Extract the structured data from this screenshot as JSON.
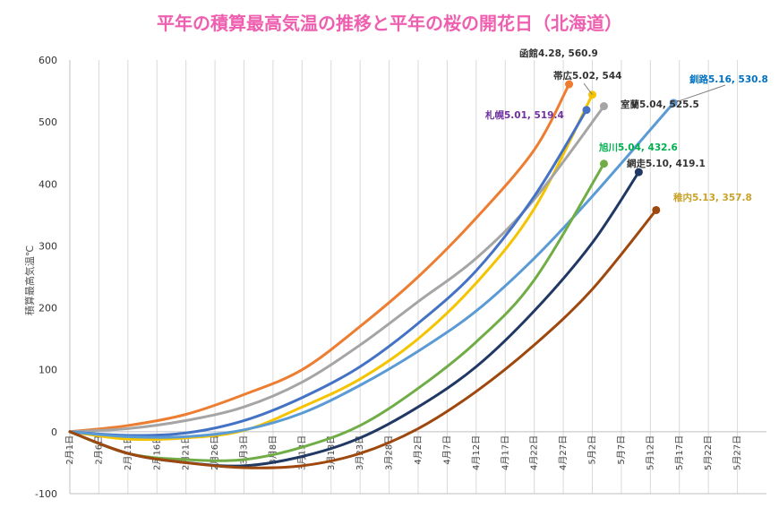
{
  "chart_data": {
    "type": "line",
    "title": "平年の積算最高気温の推移と平年の桜の開花日（北海道）",
    "ylabel": "積算最高気温℃",
    "xlabel": "",
    "ylim": [
      -100,
      600
    ],
    "yticks": [
      -100,
      0,
      100,
      200,
      300,
      400,
      500,
      600
    ],
    "grid": "vertical",
    "legend": "none",
    "x_tick_labels": [
      "2月1日",
      "2月6日",
      "2月11日",
      "2月16日",
      "2月21日",
      "2月26日",
      "3月3日",
      "3月8日",
      "3月13日",
      "3月18日",
      "3月23日",
      "3月28日",
      "4月2日",
      "4月7日",
      "4月12日",
      "4月17日",
      "4月22日",
      "4月27日",
      "5月2日",
      "5月7日",
      "5月12日",
      "5月17日",
      "5月22日",
      "5月27日"
    ],
    "series": [
      {
        "label": "函館4.28, 560.9",
        "color": "#ed7d31",
        "label_color": "#333333",
        "points": [
          [
            "2/1",
            0
          ],
          [
            "2/11",
            10
          ],
          [
            "2/21",
            28
          ],
          [
            "3/3",
            60
          ],
          [
            "3/13",
            100
          ],
          [
            "3/23",
            170
          ],
          [
            "4/2",
            250
          ],
          [
            "4/12",
            345
          ],
          [
            "4/22",
            455
          ],
          [
            "4/28",
            560.9
          ]
        ]
      },
      {
        "label": "帯広5.02, 544",
        "color": "#f5c400",
        "label_color": "#333333",
        "points": [
          [
            "2/1",
            0
          ],
          [
            "2/11",
            -12
          ],
          [
            "2/21",
            -10
          ],
          [
            "3/3",
            2
          ],
          [
            "3/13",
            40
          ],
          [
            "3/23",
            85
          ],
          [
            "4/2",
            150
          ],
          [
            "4/12",
            240
          ],
          [
            "4/22",
            360
          ],
          [
            "5/2",
            544
          ]
        ]
      },
      {
        "label": "室蘭5.04, 525.5",
        "color": "#a5a5a5",
        "label_color": "#333333",
        "points": [
          [
            "2/1",
            0
          ],
          [
            "2/11",
            5
          ],
          [
            "2/21",
            18
          ],
          [
            "3/3",
            40
          ],
          [
            "3/13",
            80
          ],
          [
            "3/23",
            140
          ],
          [
            "4/2",
            210
          ],
          [
            "4/12",
            280
          ],
          [
            "4/22",
            375
          ],
          [
            "5/4",
            525.5
          ]
        ]
      },
      {
        "label": "札幌5.01, 519.4",
        "color": "#4472c4",
        "label_color": "#7030a0",
        "points": [
          [
            "2/1",
            0
          ],
          [
            "2/11",
            -6
          ],
          [
            "2/21",
            -2
          ],
          [
            "3/3",
            18
          ],
          [
            "3/13",
            55
          ],
          [
            "3/23",
            105
          ],
          [
            "4/2",
            175
          ],
          [
            "4/12",
            260
          ],
          [
            "4/22",
            380
          ],
          [
            "5/1",
            519.4
          ]
        ]
      },
      {
        "label": "釧路5.16, 530.8",
        "color": "#5b9bd5",
        "label_color": "#0070c0",
        "points": [
          [
            "2/1",
            0
          ],
          [
            "2/11",
            -8
          ],
          [
            "2/21",
            -8
          ],
          [
            "3/3",
            3
          ],
          [
            "3/13",
            30
          ],
          [
            "3/23",
            75
          ],
          [
            "4/2",
            130
          ],
          [
            "4/12",
            195
          ],
          [
            "4/22",
            280
          ],
          [
            "5/2",
            380
          ],
          [
            "5/16",
            530.8
          ]
        ]
      },
      {
        "label": "旭川5.04, 432.6",
        "color": "#70ad47",
        "label_color": "#00b050",
        "points": [
          [
            "2/1",
            0
          ],
          [
            "2/11",
            -35
          ],
          [
            "2/21",
            -45
          ],
          [
            "3/3",
            -45
          ],
          [
            "3/13",
            -25
          ],
          [
            "3/23",
            10
          ],
          [
            "4/2",
            70
          ],
          [
            "4/12",
            145
          ],
          [
            "4/22",
            245
          ],
          [
            "5/4",
            432.6
          ]
        ]
      },
      {
        "label": "網走5.10, 419.1",
        "color": "#203864",
        "label_color": "#333333",
        "points": [
          [
            "2/1",
            0
          ],
          [
            "2/11",
            -35
          ],
          [
            "2/21",
            -50
          ],
          [
            "3/3",
            -55
          ],
          [
            "3/13",
            -40
          ],
          [
            "3/23",
            -10
          ],
          [
            "4/2",
            40
          ],
          [
            "4/12",
            105
          ],
          [
            "4/22",
            195
          ],
          [
            "5/2",
            305
          ],
          [
            "5/10",
            419.1
          ]
        ]
      },
      {
        "label": "稚内5.13, 357.8",
        "color": "#9e480e",
        "label_color": "#c9a227",
        "points": [
          [
            "2/1",
            0
          ],
          [
            "2/11",
            -35
          ],
          [
            "2/21",
            -50
          ],
          [
            "3/3",
            -58
          ],
          [
            "3/13",
            -55
          ],
          [
            "3/23",
            -35
          ],
          [
            "4/2",
            5
          ],
          [
            "4/12",
            65
          ],
          [
            "4/22",
            140
          ],
          [
            "5/2",
            230
          ],
          [
            "5/13",
            357.8
          ]
        ]
      }
    ]
  }
}
